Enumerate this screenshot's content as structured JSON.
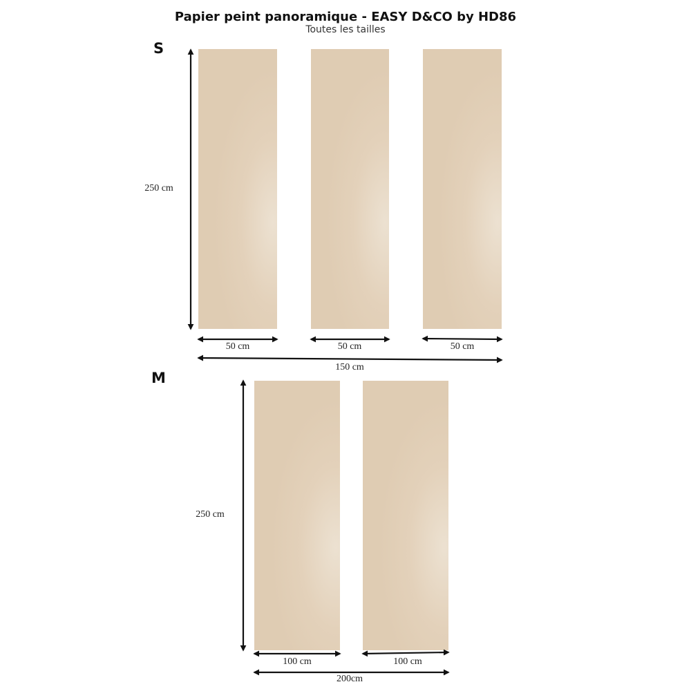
{
  "header": {
    "title": "Papier peint panoramique - EASY D&CO by HD86",
    "subtitle": "Toutes les tailles"
  },
  "size_s": {
    "label": "S",
    "height_label": "250 cm",
    "panel_width_labels": [
      "50 cm",
      "50 cm",
      "50 cm"
    ],
    "total_width_label": "150 cm"
  },
  "size_m": {
    "label": "M",
    "height_label": "250 cm",
    "panel_width_labels": [
      "100 cm",
      "100 cm"
    ],
    "total_width_label": "200cm"
  },
  "colors": {
    "panel": "#e1cfb7",
    "panel_highlight": "#ece1d1",
    "arrow": "#111111"
  }
}
